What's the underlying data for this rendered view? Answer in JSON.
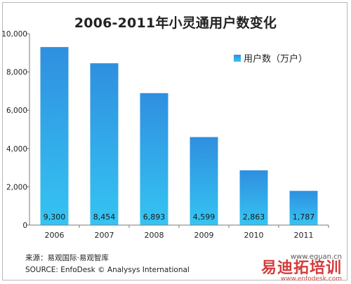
{
  "chart_data": {
    "type": "bar",
    "title": "2006-2011年小灵通用户数变化",
    "categories": [
      "2006",
      "2007",
      "2008",
      "2009",
      "2010",
      "2011"
    ],
    "series": [
      {
        "name": "用户数（万户）",
        "values": [
          9300,
          8454,
          6893,
          4599,
          2863,
          1787
        ]
      }
    ],
    "data_labels": [
      "9,300",
      "8,454",
      "6,893",
      "4,599",
      "2,863",
      "1,787"
    ],
    "ylim": [
      0,
      10000
    ],
    "yticks": [
      0,
      2000,
      4000,
      6000,
      8000,
      10000
    ],
    "ytick_labels": [
      "0",
      "2,000",
      "4,000",
      "6,000",
      "8,000",
      "10,000"
    ],
    "grid": false,
    "legend_position": "top-right",
    "bar_colors": {
      "top": "#2f8fe0",
      "bottom": "#35c4f2"
    },
    "axis_color": "#7a7a7a"
  },
  "footer": {
    "source_cn": "来源：易观国际·易观智库",
    "source_en": "SOURCE: EnfoDesk © Analysys International"
  },
  "watermark": {
    "site": "www.eguan.cn",
    "brand": "易迪拓培训",
    "url": "www.enfodesk.com"
  }
}
